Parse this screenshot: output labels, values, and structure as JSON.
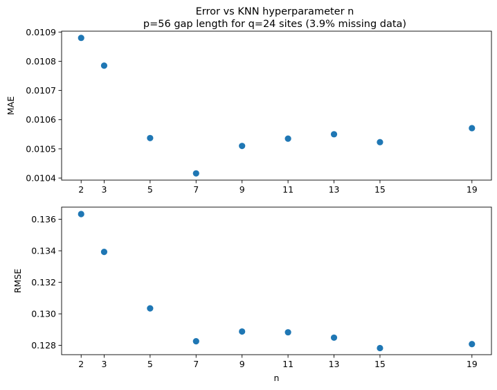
{
  "title_line1": "Error vs KNN hyperparameter n",
  "title_line2": "p=56 gap length for q=24 sites (3.9% missing data)",
  "marker_color": "#1f77b4",
  "chart_data": [
    {
      "type": "scatter",
      "title": "",
      "xlabel": "",
      "ylabel": "MAE",
      "x": [
        2,
        3,
        5,
        7,
        9,
        11,
        13,
        15,
        19
      ],
      "y": [
        0.01088,
        0.010785,
        0.010537,
        0.010416,
        0.01051,
        0.010535,
        0.01055,
        0.010523,
        0.010571
      ],
      "xticks": [
        "2",
        "3",
        "5",
        "7",
        "9",
        "11",
        "13",
        "15",
        "19"
      ],
      "yticks": [
        "0.0104",
        "0.0105",
        "0.0106",
        "0.0107",
        "0.0108",
        "0.0109"
      ],
      "ytick_values": [
        0.0104,
        0.0105,
        0.0106,
        0.0107,
        0.0108,
        0.0109
      ],
      "xlim": [
        1.15,
        19.85
      ],
      "ylim": [
        0.010393,
        0.010903
      ],
      "grid": false,
      "legend": "none"
    },
    {
      "type": "scatter",
      "title": "",
      "xlabel": "n",
      "ylabel": "RMSE",
      "x": [
        2,
        3,
        5,
        7,
        9,
        11,
        13,
        15,
        19
      ],
      "y": [
        0.13633,
        0.13393,
        0.13035,
        0.12826,
        0.12888,
        0.12883,
        0.12849,
        0.12783,
        0.12808
      ],
      "xticks": [
        "2",
        "3",
        "5",
        "7",
        "9",
        "11",
        "13",
        "15",
        "19"
      ],
      "yticks": [
        "0.128",
        "0.130",
        "0.132",
        "0.134",
        "0.136"
      ],
      "ytick_values": [
        0.128,
        0.13,
        0.132,
        0.134,
        0.136
      ],
      "xlim": [
        1.15,
        19.85
      ],
      "ylim": [
        0.12741,
        0.13677
      ],
      "grid": false,
      "legend": "none"
    }
  ]
}
